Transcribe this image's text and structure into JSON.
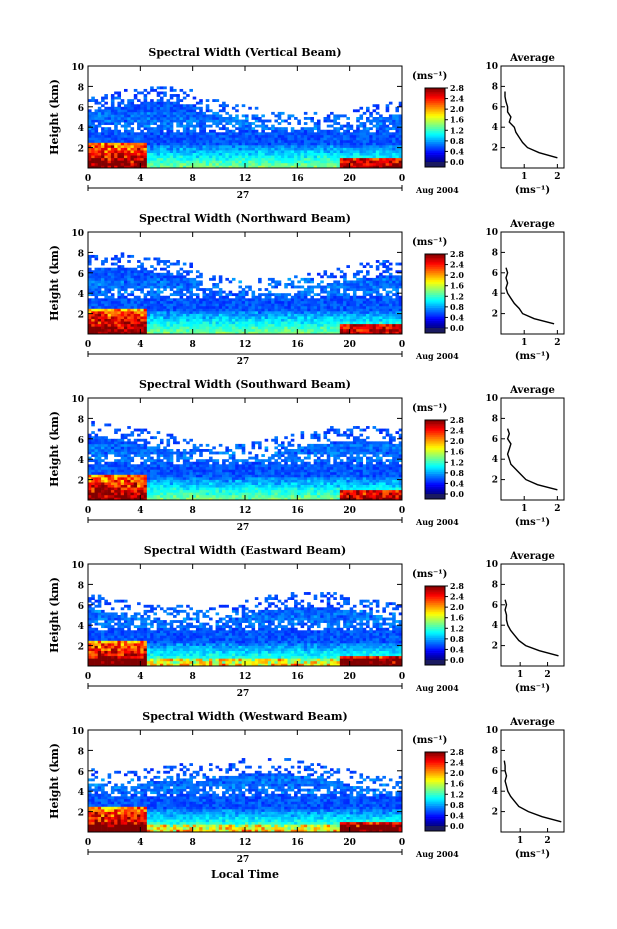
{
  "figure": {
    "xlabel": "Local Time",
    "date_label": "Aug 2004",
    "day_label": "27",
    "colorbar_unit": "(ms⁻¹)",
    "avg_title": "Average",
    "avg_xlabel": "(ms⁻¹)",
    "ylabel": "Height (km)"
  },
  "chart_data": [
    {
      "type": "heatmap",
      "title": "Spectral Width (Vertical Beam)",
      "xlabel": "",
      "ylabel": "Height (km)",
      "x_ticks": [
        "0",
        "4",
        "8",
        "12",
        "16",
        "20",
        "0"
      ],
      "x_range": [
        0,
        24
      ],
      "y_ticks": [
        "2",
        "4",
        "6",
        "8",
        "10"
      ],
      "ylim": [
        0,
        10
      ],
      "colorbar": {
        "ticks": [
          "0.0",
          "0.4",
          "0.8",
          "1.2",
          "1.6",
          "2.0",
          "2.4",
          "2.8"
        ],
        "range": [
          0,
          2.8
        ]
      },
      "average": {
        "xlabel": "(ms⁻¹)",
        "x_ticks": [
          "1",
          "2"
        ],
        "xlim": [
          0.3,
          2.2
        ],
        "heights": [
          1.0,
          1.5,
          2.0,
          2.5,
          3.0,
          3.5,
          4.0,
          4.5,
          5.0,
          5.5,
          6.0,
          6.5,
          7.0,
          7.5
        ],
        "values": [
          2.0,
          1.45,
          1.1,
          0.95,
          0.85,
          0.75,
          0.7,
          0.55,
          0.6,
          0.5,
          0.5,
          0.45,
          0.42,
          0.42
        ]
      }
    },
    {
      "type": "heatmap",
      "title": "Spectral Width (Northward Beam)",
      "xlabel": "",
      "ylabel": "Height (km)",
      "x_ticks": [
        "0",
        "4",
        "8",
        "12",
        "16",
        "20",
        "0"
      ],
      "x_range": [
        0,
        24
      ],
      "y_ticks": [
        "2",
        "4",
        "6",
        "8",
        "10"
      ],
      "ylim": [
        0,
        10
      ],
      "colorbar": {
        "ticks": [
          "0.0",
          "0.4",
          "0.8",
          "1.2",
          "1.6",
          "2.0",
          "2.4",
          "2.8"
        ],
        "range": [
          0,
          2.8
        ]
      },
      "average": {
        "xlabel": "(ms⁻¹)",
        "x_ticks": [
          "1",
          "2"
        ],
        "xlim": [
          0.3,
          2.2
        ],
        "heights": [
          1.0,
          1.5,
          2.0,
          2.5,
          3.0,
          3.5,
          4.0,
          4.5,
          5.0,
          5.5,
          6.0,
          6.5
        ],
        "values": [
          1.9,
          1.3,
          0.95,
          0.85,
          0.7,
          0.6,
          0.5,
          0.45,
          0.5,
          0.45,
          0.5,
          0.45
        ]
      }
    },
    {
      "type": "heatmap",
      "title": "Spectral Width (Southward Beam)",
      "xlabel": "",
      "ylabel": "Height (km)",
      "x_ticks": [
        "0",
        "4",
        "8",
        "12",
        "16",
        "20",
        "0"
      ],
      "x_range": [
        0,
        24
      ],
      "y_ticks": [
        "2",
        "4",
        "6",
        "8",
        "10"
      ],
      "ylim": [
        0,
        10
      ],
      "colorbar": {
        "ticks": [
          "0.0",
          "0.4",
          "0.8",
          "1.2",
          "1.6",
          "2.0",
          "2.4",
          "2.8"
        ],
        "range": [
          0,
          2.8
        ]
      },
      "average": {
        "xlabel": "(ms⁻¹)",
        "x_ticks": [
          "1",
          "2"
        ],
        "xlim": [
          0.3,
          2.2
        ],
        "heights": [
          1.0,
          1.5,
          2.0,
          2.5,
          3.0,
          3.5,
          4.0,
          4.5,
          5.0,
          5.5,
          6.0,
          6.5,
          7.0
        ],
        "values": [
          2.0,
          1.4,
          1.05,
          0.9,
          0.75,
          0.6,
          0.55,
          0.5,
          0.55,
          0.6,
          0.5,
          0.55,
          0.5
        ]
      }
    },
    {
      "type": "heatmap",
      "title": "Spectral Width (Eastward Beam)",
      "xlabel": "",
      "ylabel": "Height (km)",
      "x_ticks": [
        "0",
        "4",
        "8",
        "12",
        "16",
        "20",
        "0"
      ],
      "x_range": [
        0,
        24
      ],
      "y_ticks": [
        "2",
        "4",
        "6",
        "8",
        "10"
      ],
      "ylim": [
        0,
        10
      ],
      "colorbar": {
        "ticks": [
          "0.0",
          "0.4",
          "0.8",
          "1.2",
          "1.6",
          "2.0",
          "2.4",
          "2.8"
        ],
        "range": [
          0,
          2.8
        ]
      },
      "average": {
        "xlabel": "(ms⁻¹)",
        "x_ticks": [
          "1",
          "2"
        ],
        "xlim": [
          0.3,
          2.6
        ],
        "heights": [
          1.0,
          1.5,
          2.0,
          2.5,
          3.0,
          3.5,
          4.0,
          4.5,
          5.0,
          5.5,
          6.0,
          6.5
        ],
        "values": [
          2.4,
          1.7,
          1.2,
          0.95,
          0.8,
          0.65,
          0.55,
          0.5,
          0.5,
          0.45,
          0.5,
          0.45
        ]
      }
    },
    {
      "type": "heatmap",
      "title": "Spectral Width (Westward Beam)",
      "xlabel": "Local Time",
      "ylabel": "Height (km)",
      "x_ticks": [
        "0",
        "4",
        "8",
        "12",
        "16",
        "20",
        "0"
      ],
      "x_range": [
        0,
        24
      ],
      "y_ticks": [
        "2",
        "4",
        "6",
        "8",
        "10"
      ],
      "ylim": [
        0,
        10
      ],
      "colorbar": {
        "ticks": [
          "0.0",
          "0.4",
          "0.8",
          "1.2",
          "1.6",
          "2.0",
          "2.4",
          "2.8"
        ],
        "range": [
          0,
          2.8
        ]
      },
      "average": {
        "xlabel": "(ms⁻¹)",
        "x_ticks": [
          "1",
          "2"
        ],
        "xlim": [
          0.3,
          2.6
        ],
        "heights": [
          1.0,
          1.5,
          2.0,
          2.5,
          3.0,
          3.5,
          4.0,
          4.5,
          5.0,
          5.5,
          6.0,
          6.5,
          7.0
        ],
        "values": [
          2.5,
          1.8,
          1.3,
          0.95,
          0.8,
          0.65,
          0.55,
          0.5,
          0.45,
          0.5,
          0.45,
          0.45,
          0.42
        ]
      }
    }
  ]
}
